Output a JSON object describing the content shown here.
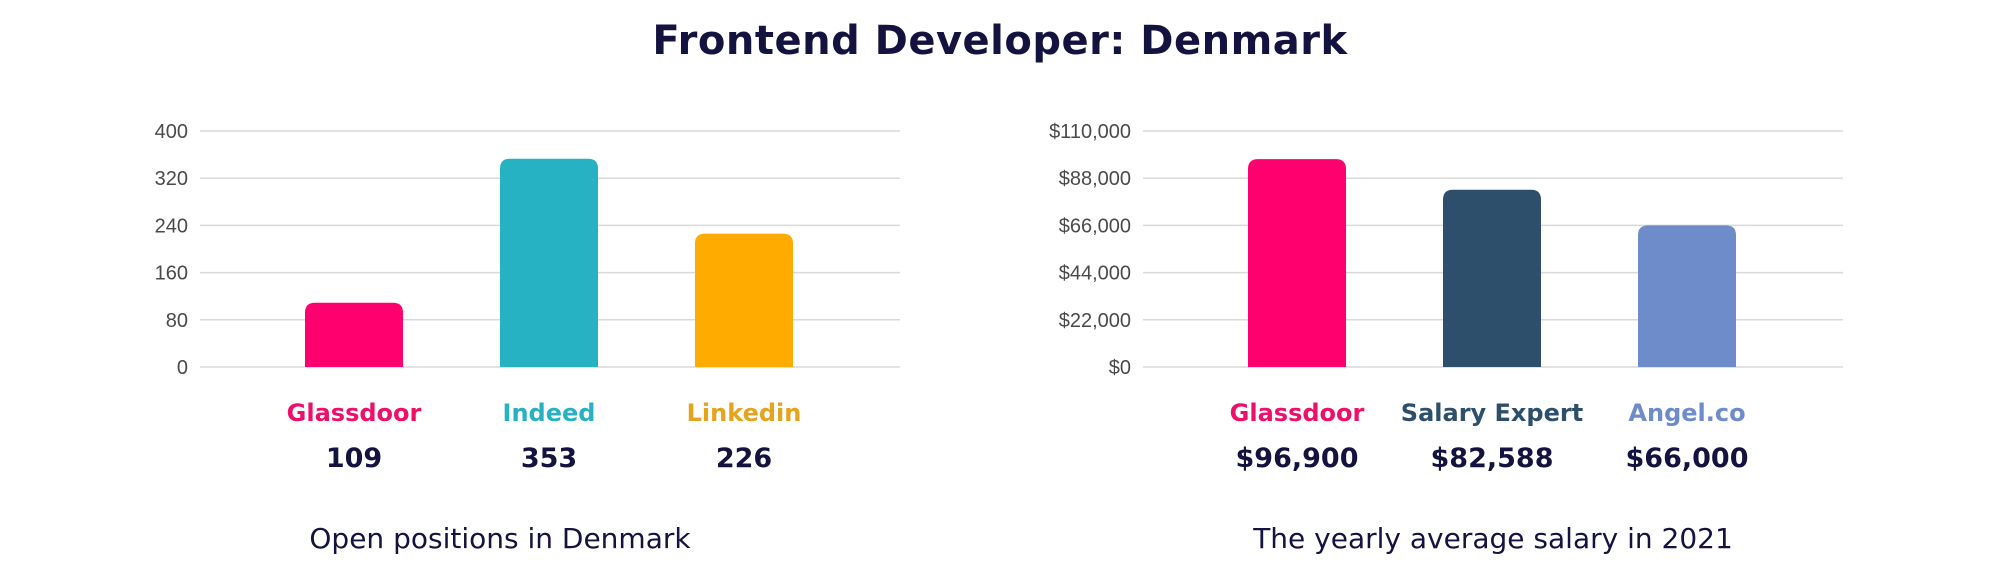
{
  "title": "Frontend Developer: Denmark",
  "chart_data": [
    {
      "type": "bar",
      "title": "",
      "caption": "Open positions in Denmark",
      "categories": [
        "Glassdoor",
        "Indeed",
        "Linkedin"
      ],
      "values": [
        109,
        353,
        226
      ],
      "value_labels": [
        "109",
        "353",
        "226"
      ],
      "colors": [
        "#ff006e",
        "#27b2c4",
        "#ffab00"
      ],
      "label_colors": [
        "#ee0f6a",
        "#27b2c4",
        "#e5a41d"
      ],
      "ylim": [
        0,
        400
      ],
      "yticks": [
        0,
        80,
        160,
        240,
        320,
        400
      ],
      "ytick_labels": [
        "0",
        "80",
        "160",
        "240",
        "320",
        "400"
      ],
      "grid": true,
      "xlabel": "",
      "ylabel": ""
    },
    {
      "type": "bar",
      "title": "",
      "caption": "The yearly average salary in 2021",
      "categories": [
        "Glassdoor",
        "Salary Expert",
        "Angel.co"
      ],
      "values": [
        96900,
        82588,
        66000
      ],
      "value_labels": [
        "$96,900",
        "$82,588",
        "$66,000"
      ],
      "colors": [
        "#ff006e",
        "#2d4f6b",
        "#6e8bca"
      ],
      "label_colors": [
        "#ee0f6a",
        "#2d4f6b",
        "#6e8bca"
      ],
      "ylim": [
        0,
        110000
      ],
      "yticks": [
        0,
        22000,
        44000,
        66000,
        88000,
        110000
      ],
      "ytick_labels": [
        "$0",
        "$22,000",
        "$44,000",
        "$66,000",
        "$88,000",
        "$110,000"
      ],
      "grid": true,
      "xlabel": "",
      "ylabel": ""
    }
  ]
}
